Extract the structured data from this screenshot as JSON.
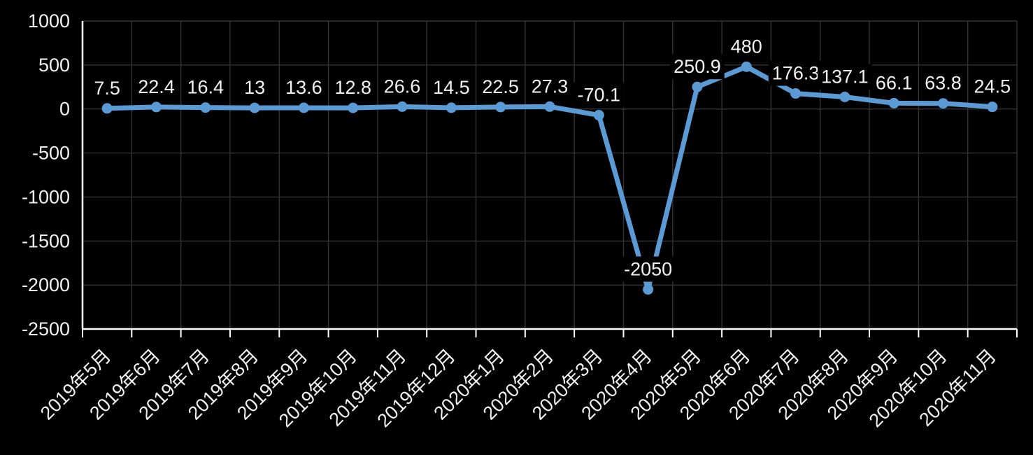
{
  "chart_data": {
    "type": "line",
    "title": "",
    "categories": [
      "2019年5月",
      "2019年6月",
      "2019年7月",
      "2019年8月",
      "2019年9月",
      "2019年10月",
      "2019年11月",
      "2019年12月",
      "2020年1月",
      "2020年2月",
      "2020年3月",
      "2020年4月",
      "2020年5月",
      "2020年6月",
      "2020年7月",
      "2020年8月",
      "2020年9月",
      "2020年10月",
      "2020年11月"
    ],
    "series": [
      {
        "values": [
          7.5,
          22.4,
          16.4,
          13,
          13.6,
          12.8,
          26.6,
          14.5,
          22.5,
          27.3,
          -70.1,
          -2050,
          250.9,
          480,
          176.3,
          137.1,
          66.1,
          63.8,
          24.5
        ],
        "data_labels": [
          "7.5",
          "22.4",
          "16.4",
          "13",
          "13.6",
          "12.8",
          "26.6",
          "14.5",
          "22.5",
          "27.3",
          "-70.1",
          "-2050",
          "250.9",
          "480",
          "176.3",
          "137.1",
          "66.1",
          "63.8",
          "24.5"
        ]
      }
    ],
    "ylim": [
      -2500,
      1000
    ],
    "yticks": [
      1000,
      500,
      0,
      -500,
      -1000,
      -1500,
      -2000,
      -2500
    ],
    "ytick_labels": [
      "1000",
      "500",
      "0",
      "-500",
      "-1000",
      "-1500",
      "-2000",
      "-2500"
    ],
    "grid": true,
    "legend": "none",
    "x_label_rotation_deg": -45,
    "marker": "circle",
    "colors": {
      "background": "#000000",
      "series": "#5B9BD5",
      "grid": "#333333",
      "axis": "#FFFFFF",
      "text": "#F2F2F2"
    }
  }
}
